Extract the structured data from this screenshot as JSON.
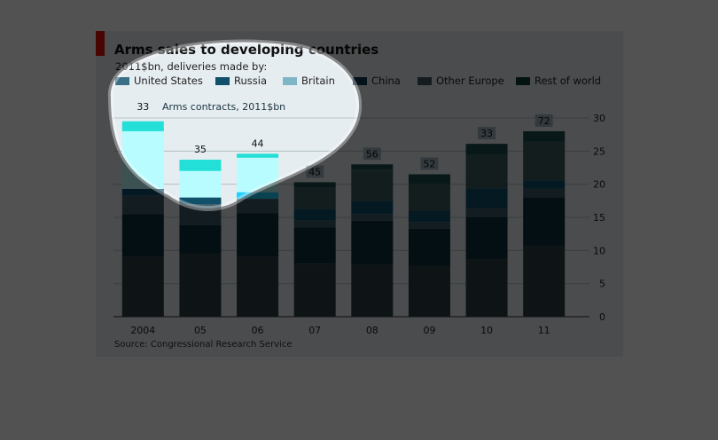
{
  "chart_data": {
    "type": "bar",
    "stacked": true,
    "title": "Arms sales to developing countries",
    "subtitle": "2011$bn, deliveries made by:",
    "source": "Source: Congressional Research Service",
    "categories": [
      "2004",
      "05",
      "06",
      "07",
      "08",
      "09",
      "10",
      "11"
    ],
    "series": [
      {
        "name": "Rest of world",
        "color": "#2c3f46",
        "values": [
          9.0,
          9.5,
          9.0,
          8.0,
          7.8,
          7.7,
          8.7,
          10.6
        ]
      },
      {
        "name": "Other Europe",
        "color": "#0e2f3c",
        "values": [
          6.5,
          4.3,
          6.6,
          5.5,
          6.7,
          5.6,
          6.3,
          7.4
        ]
      },
      {
        "name": "China",
        "color": "#3c5a68",
        "values": [
          2.8,
          3.2,
          2.2,
          1.0,
          1.0,
          1.0,
          1.4,
          1.3
        ]
      },
      {
        "name": "Britain",
        "color": "#11506a",
        "values": [
          1.0,
          1.0,
          1.0,
          1.8,
          2.0,
          1.7,
          3.0,
          1.3
        ]
      },
      {
        "name": "Russia",
        "color": "#3c5b5e",
        "values": [
          8.7,
          4.0,
          5.2,
          3.2,
          4.7,
          4.0,
          5.0,
          5.8
        ]
      },
      {
        "name": "United States",
        "color": "#1a4b4b",
        "values": [
          1.5,
          1.7,
          0.6,
          0.8,
          0.8,
          1.5,
          1.7,
          1.6
        ]
      }
    ],
    "legend": [
      {
        "name": "United States",
        "color": "#3a6f86"
      },
      {
        "name": "Russia",
        "color": "#11506a"
      },
      {
        "name": "Britain",
        "color": "#7fb6c6"
      },
      {
        "name": "China",
        "color": "#0e3a52"
      },
      {
        "name": "Other Europe",
        "color": "#3c5a60"
      },
      {
        "name": "Rest of world",
        "color": "#0d3d3a"
      }
    ],
    "contracts_label": "Arms contracts, 2011$bn",
    "contracts": [
      33,
      35,
      44,
      45,
      56,
      52,
      33,
      72
    ],
    "ylim": [
      0,
      30
    ],
    "yticks": [
      0,
      5,
      10,
      15,
      20,
      25,
      30
    ],
    "y_axis_side": "right",
    "grid": true
  },
  "colors": {
    "background": "#e6edf0",
    "dim_overlay": "#000000",
    "highlight_cyan": "#22e0d8",
    "highlight_light": "#b8fcff",
    "highlight_blue": "#1ed0ff"
  }
}
